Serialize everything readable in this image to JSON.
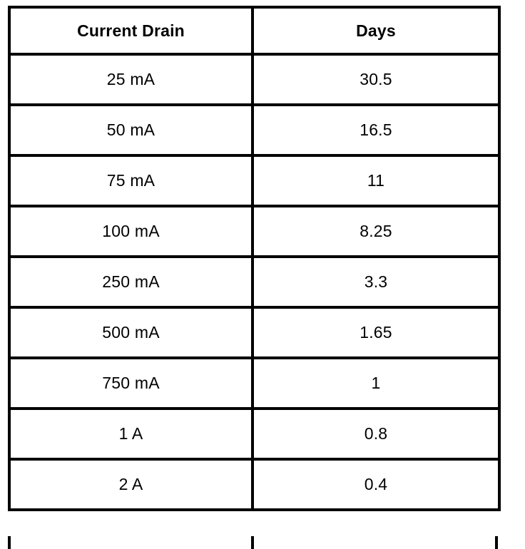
{
  "page": {
    "background_color": "#ffffff",
    "border_color": "#000000",
    "text_color": "#000000"
  },
  "table": {
    "columns": [
      "Current Drain",
      "Days"
    ],
    "rows": [
      [
        "25 mA",
        "30.5"
      ],
      [
        "50 mA",
        "16.5"
      ],
      [
        "75 mA",
        "11"
      ],
      [
        "100 mA",
        "8.25"
      ],
      [
        "250 mA",
        "3.3"
      ],
      [
        "500 mA",
        "1.65"
      ],
      [
        "750 mA",
        "1"
      ],
      [
        "1 A",
        "0.8"
      ],
      [
        "2 A",
        "0.4"
      ]
    ]
  },
  "chart_data": {
    "type": "table",
    "title": "",
    "columns": [
      "Current Drain",
      "Days"
    ],
    "categories": [
      "25 mA",
      "50 mA",
      "75 mA",
      "100 mA",
      "250 mA",
      "500 mA",
      "750 mA",
      "1 A",
      "2 A"
    ],
    "values": [
      30.5,
      16.5,
      11,
      8.25,
      3.3,
      1.65,
      1,
      0.8,
      0.4
    ],
    "xlabel": "Current Drain",
    "ylabel": "Days",
    "grid": true,
    "notes": "black ruled table on white background, header row bold, all cells center-aligned; table continues below bottom edge (vertical rules cut off)"
  }
}
